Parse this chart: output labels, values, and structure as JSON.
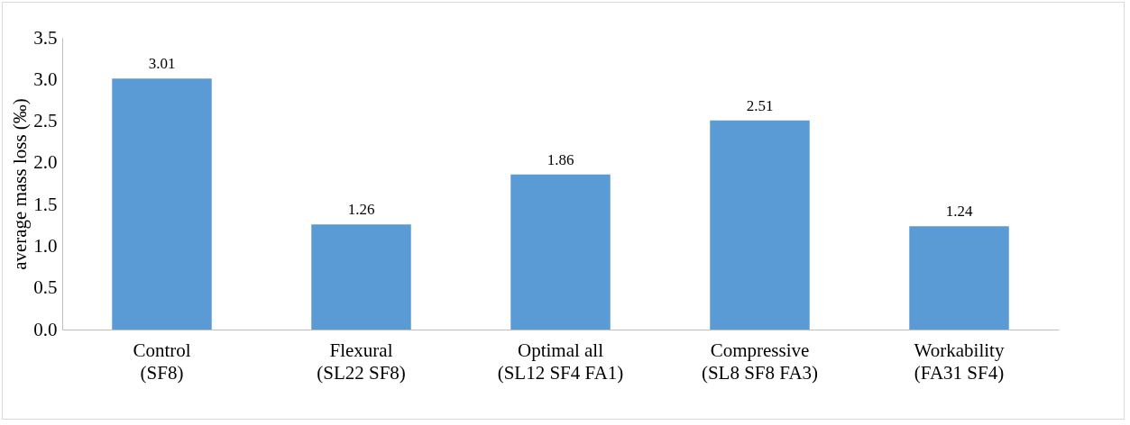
{
  "chart_data": {
    "type": "bar",
    "ylabel": "average mass loss (‰)",
    "categories": [
      "Control\n(SF8)",
      "Flexural\n(SL22 SF8)",
      "Optimal all\n(SL12 SF4 FA1)",
      "Compressive\n(SL8 SF8 FA3)",
      "Workability\n(FA31 SF4)"
    ],
    "values": [
      3.01,
      1.26,
      1.86,
      2.51,
      1.24
    ],
    "color": "#5b9bd5",
    "ylim": [
      0,
      3.5
    ],
    "yticks": [
      {
        "value": 0,
        "label": "0.0"
      },
      {
        "value": 0.5,
        "label": "0.5"
      },
      {
        "value": 1,
        "label": "1.0"
      },
      {
        "value": 1.5,
        "label": "1.5"
      },
      {
        "value": 2,
        "label": "2.0"
      },
      {
        "value": 2.5,
        "label": "2.5"
      },
      {
        "value": 3,
        "label": "3.0"
      },
      {
        "value": 3.5,
        "label": "3.5"
      }
    ],
    "grid": false,
    "data_labels": true
  }
}
